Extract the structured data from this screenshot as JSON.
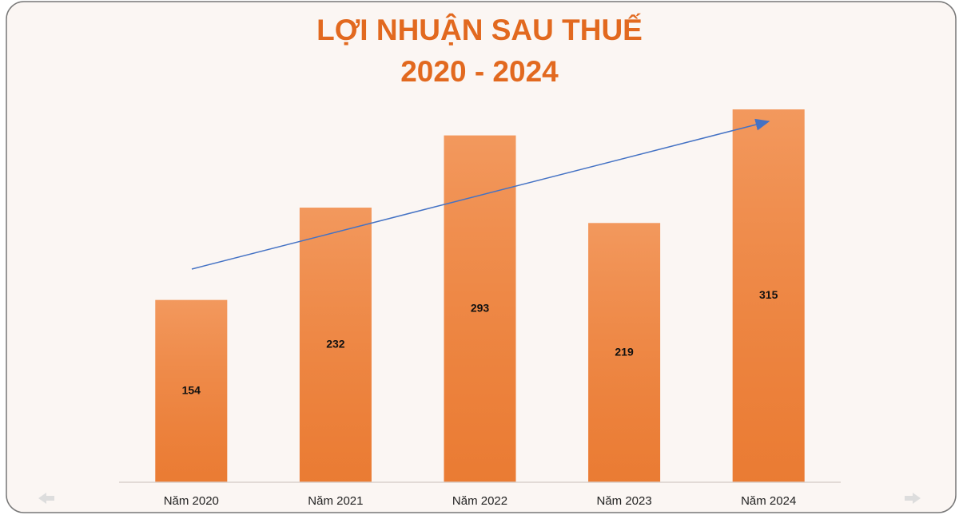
{
  "chart_data": {
    "type": "bar",
    "title": "LỢI NHUẬN SAU THUẾ",
    "subtitle": "2020 - 2024",
    "categories": [
      "Năm 2020",
      "Năm 2021",
      "Năm 2022",
      "Năm 2023",
      "Năm 2024"
    ],
    "values": [
      154,
      232,
      293,
      219,
      315
    ],
    "color": "#f0823a",
    "data_labels": true
  }
}
